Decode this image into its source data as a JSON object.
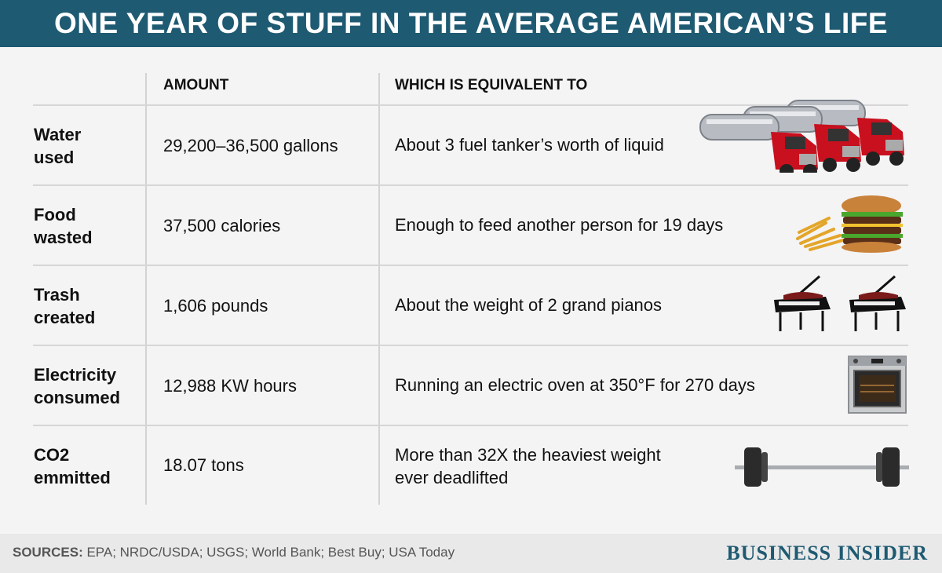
{
  "title": "ONE YEAR OF STUFF IN THE AVERAGE AMERICAN’S LIFE",
  "columns": {
    "amount": "AMOUNT",
    "equivalent": "WHICH IS EQUIVALENT TO"
  },
  "rows": [
    {
      "label_line1": "Water",
      "label_line2": "used",
      "amount": "29,200–36,500 gallons",
      "equivalent_line1": "About 3 fuel tanker’s worth of liquid",
      "equivalent_line2": "",
      "icon": "fuel-tanker-trucks-icon"
    },
    {
      "label_line1": "Food",
      "label_line2": "wasted",
      "amount": "37,500 calories",
      "equivalent_line1": "Enough to feed another person for 19 days",
      "equivalent_line2": "",
      "icon": "burger-and-fries-icon"
    },
    {
      "label_line1": "Trash",
      "label_line2": "created",
      "amount": "1,606 pounds",
      "equivalent_line1": "About the weight of 2 grand pianos",
      "equivalent_line2": "",
      "icon": "grand-pianos-icon"
    },
    {
      "label_line1": "Electricity",
      "label_line2": "consumed",
      "amount": "12,988 KW hours",
      "equivalent_line1": "Running an electric oven at 350°F for 270 days",
      "equivalent_line2": "",
      "icon": "electric-oven-icon"
    },
    {
      "label_line1": "CO2",
      "label_line2": "emmitted",
      "amount": "18.07 tons",
      "equivalent_line1": "More than 32X the heaviest weight",
      "equivalent_line2": "ever deadlifted",
      "icon": "barbell-icon"
    }
  ],
  "footer": {
    "sources_label": "SOURCES:",
    "sources_text": " EPA; NRDC/USDA; USGS; World Bank; Best Buy; USA Today",
    "brand": "BUSINESS INSIDER"
  },
  "colors": {
    "title_bar": "#1e5a72",
    "brand": "#1e5a72",
    "truck_cab": "#c8101e",
    "tank_metal": "#b8bcc2"
  }
}
